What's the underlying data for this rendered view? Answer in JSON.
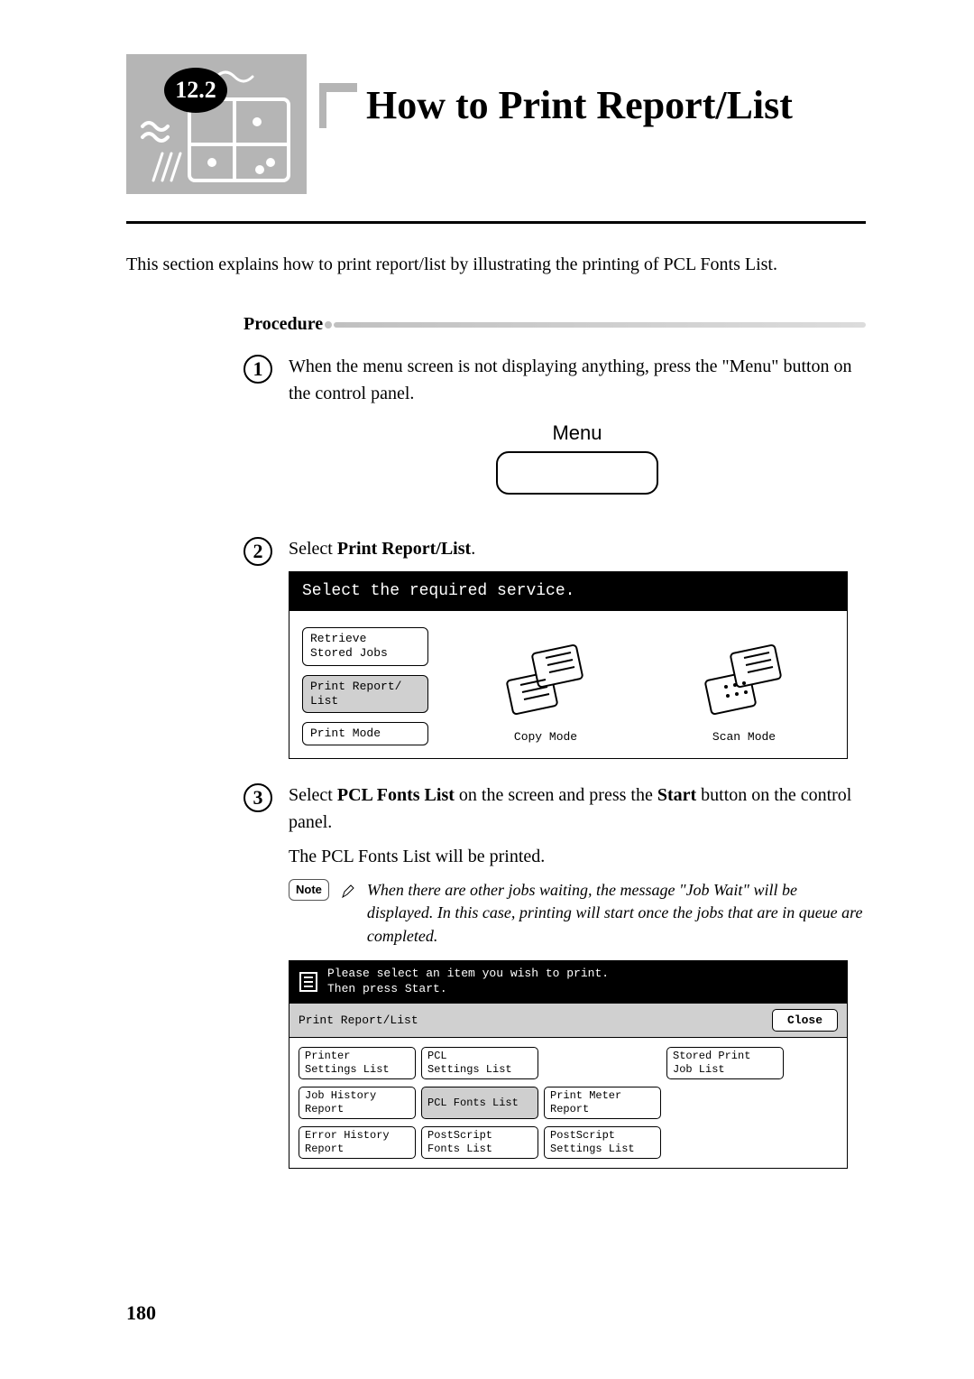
{
  "section_number": "12.2",
  "title": "How to Print Report/List",
  "intro": "This section explains how to print report/list by illustrating the printing of PCL Fonts List.",
  "procedure_label": "Procedure",
  "steps": {
    "s1": {
      "num": "1",
      "text": "When the menu screen is not displaying anything, press the \"Menu\" button on the control panel.",
      "menu_label": "Menu"
    },
    "s2": {
      "num": "2",
      "prefix": "Select ",
      "bold": "Print Report/List",
      "suffix": ".",
      "screen": {
        "header": "Select the required service.",
        "buttons": [
          "Retrieve\nStored Jobs",
          "Print Report/\nList",
          "Print Mode"
        ],
        "selected_index": 1,
        "copy_label": "Copy Mode",
        "scan_label": "Scan Mode"
      }
    },
    "s3": {
      "num": "3",
      "line1": {
        "p1": "Select ",
        "b1": "PCL Fonts List",
        "p2": " on the screen and press the ",
        "b2": "Start",
        "p3": " button on the control panel."
      },
      "line2": "The PCL Fonts List will be printed.",
      "note_label": "Note",
      "note_text": "When there are other jobs waiting, the message \"Job Wait\" will be displayed. In this case, printing will start once the jobs that are in queue are completed.",
      "screen": {
        "instr1": "Please select an item you wish to print.",
        "instr2": "Then press Start.",
        "bar_label": "Print Report/List",
        "close": "Close",
        "grid": [
          {
            "label": "Printer\nSettings List",
            "row": 1,
            "col": 1
          },
          {
            "label": "PCL\nSettings List",
            "row": 1,
            "col": 2
          },
          {
            "label": "Stored Print\nJob List",
            "row": 1,
            "col": 4
          },
          {
            "label": "Job History\nReport",
            "row": 2,
            "col": 1
          },
          {
            "label": "PCL Fonts List",
            "row": 2,
            "col": 2,
            "selected": true
          },
          {
            "label": "Print Meter\nReport",
            "row": 2,
            "col": 3
          },
          {
            "label": "Error History\nReport",
            "row": 3,
            "col": 1
          },
          {
            "label": "PostScript\nFonts List",
            "row": 3,
            "col": 2
          },
          {
            "label": "PostScript\nSettings List",
            "row": 3,
            "col": 3
          }
        ]
      }
    }
  },
  "page_number": "180",
  "colors": {
    "header_graphic_bg": "#b5b5b5",
    "screen_header_bg": "#000000",
    "screen_header_fg": "#ffffff",
    "selected_bg": "#cfcfcf",
    "bar_bg": "#d0d0d0"
  }
}
